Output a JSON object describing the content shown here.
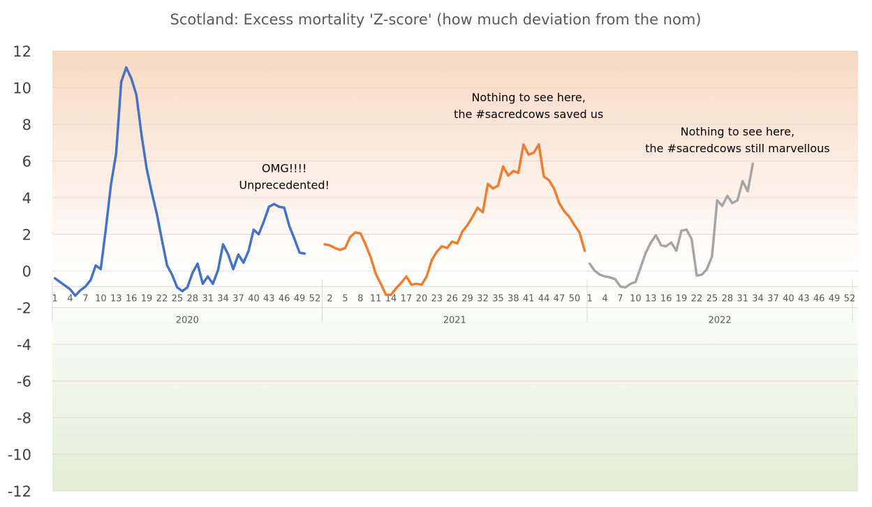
{
  "chart_data": {
    "type": "line",
    "title": "Scotland: Excess mortality 'Z-score' (how much deviation from the nom)",
    "ylim": [
      -12,
      12
    ],
    "yticks": [
      12,
      10,
      8,
      6,
      4,
      2,
      0,
      -2,
      -4,
      -6,
      -8,
      -10,
      -12
    ],
    "grid": true,
    "legend": "none",
    "week_tick_labels": [
      1,
      4,
      7,
      10,
      13,
      16,
      19,
      22,
      25,
      28,
      31,
      34,
      37,
      40,
      43,
      46,
      49,
      52
    ],
    "week_tick_labels_2021": [
      2,
      5,
      8,
      11,
      14,
      17,
      20,
      23,
      26,
      29,
      32,
      35,
      38,
      41,
      44,
      47,
      50
    ],
    "background": {
      "positive_color": "#f8d9c3",
      "negative_color": "#e3efd9"
    },
    "series": [
      {
        "year": "2020",
        "color": "#4472c4",
        "weeks": 53,
        "values": [
          -0.4,
          -0.6,
          -0.8,
          -1.0,
          -1.35,
          -1.05,
          -0.85,
          -0.5,
          0.3,
          0.1,
          2.3,
          4.7,
          6.4,
          10.3,
          11.1,
          10.5,
          9.6,
          7.4,
          5.6,
          4.3,
          3.1,
          1.7,
          0.3,
          -0.2,
          -0.9,
          -1.1,
          -0.9,
          -0.1,
          0.4,
          -0.7,
          -0.3,
          -0.7,
          0.05,
          1.45,
          0.9,
          0.1,
          0.9,
          0.45,
          1.1,
          2.25,
          2.0,
          2.7,
          3.5,
          3.65,
          3.5,
          3.45,
          2.45,
          1.75,
          1.0,
          0.95
        ]
      },
      {
        "year": "2021",
        "color": "#ed7d31",
        "weeks": 52,
        "values": [
          1.45,
          1.4,
          1.25,
          1.15,
          1.25,
          1.85,
          2.1,
          2.05,
          1.45,
          0.75,
          -0.15,
          -0.7,
          -1.3,
          -1.3,
          -0.95,
          -0.65,
          -0.3,
          -0.75,
          -0.7,
          -0.75,
          -0.3,
          0.6,
          1.05,
          1.35,
          1.25,
          1.6,
          1.5,
          2.15,
          2.5,
          2.95,
          3.45,
          3.2,
          4.75,
          4.5,
          4.65,
          5.7,
          5.2,
          5.45,
          5.35,
          6.9,
          6.35,
          6.45,
          6.9,
          5.15,
          4.95,
          4.5,
          3.7,
          3.25,
          2.95,
          2.5,
          2.1,
          1.1
        ]
      },
      {
        "year": "2022",
        "color": "#a5a5a5",
        "weeks": 52,
        "values": [
          0.4,
          0.0,
          -0.2,
          -0.3,
          -0.35,
          -0.45,
          -0.85,
          -0.9,
          -0.7,
          -0.6,
          0.2,
          1.0,
          1.55,
          1.95,
          1.4,
          1.35,
          1.55,
          1.1,
          2.2,
          2.25,
          1.75,
          -0.25,
          -0.2,
          0.1,
          0.8,
          3.85,
          3.55,
          4.1,
          3.7,
          3.85,
          4.9,
          4.35,
          5.85
        ]
      }
    ],
    "annotations": [
      {
        "lines": [
          "OMG!!!!",
          "Unprecedented!"
        ],
        "year": "2020",
        "week": 46,
        "y": 5.4
      },
      {
        "lines": [
          "Nothing to see here,",
          "the #sacredcows saved us"
        ],
        "year": "2021",
        "week": 41,
        "y": 9.25
      },
      {
        "lines": [
          "Nothing to see here,",
          "the #sacredcows still marvellous"
        ],
        "year": "2022",
        "week": 30,
        "y": 7.4
      }
    ]
  }
}
